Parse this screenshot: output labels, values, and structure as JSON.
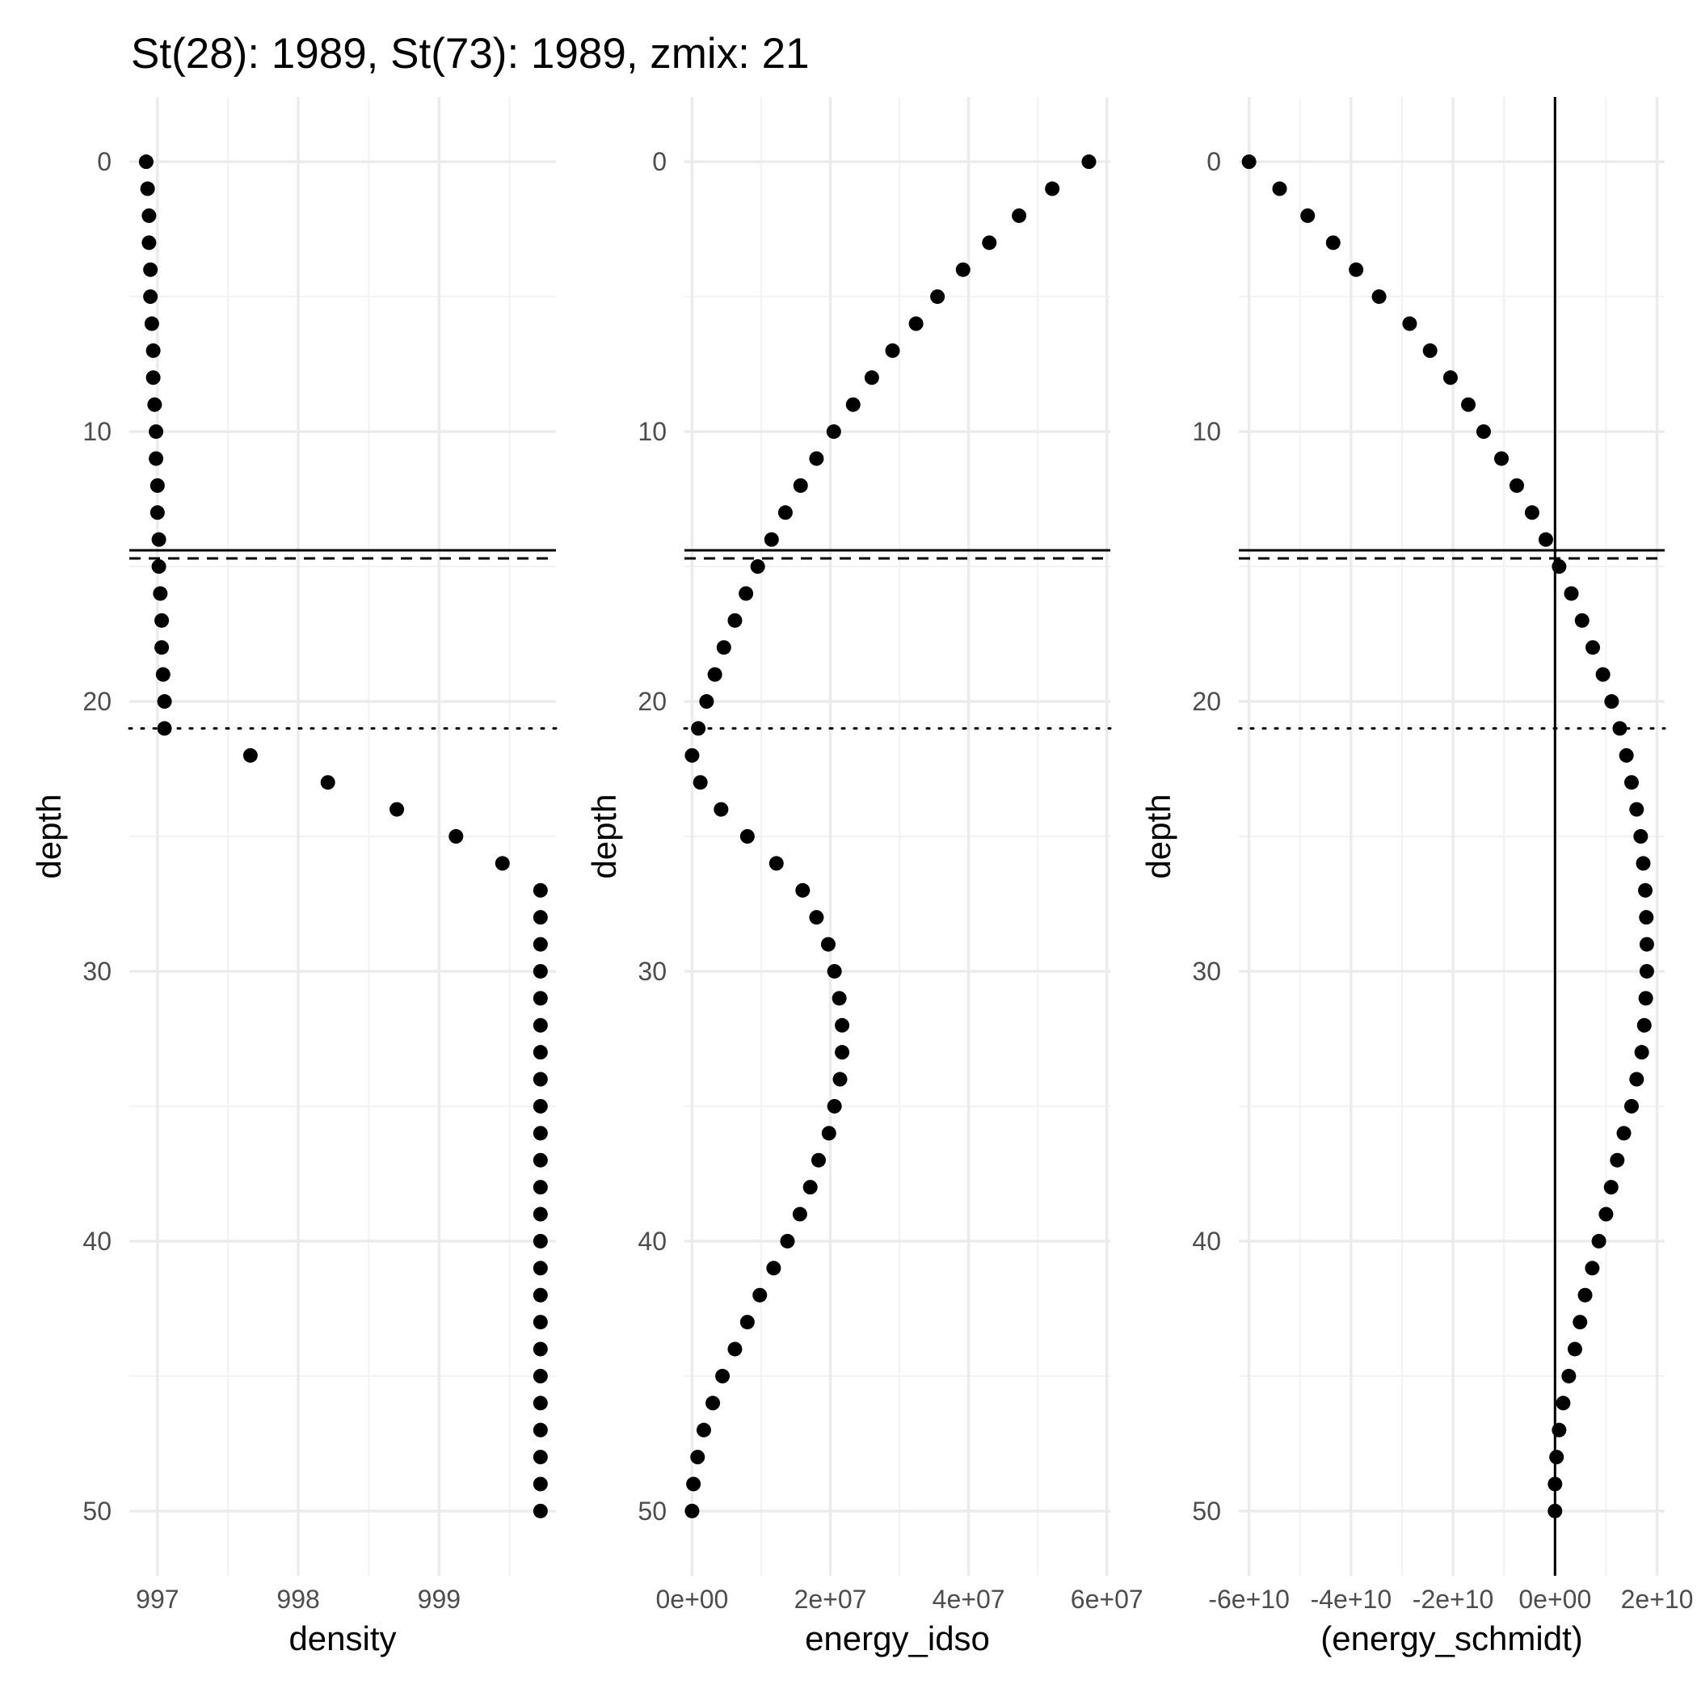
{
  "title": "St(28): 1989, St(73): 1989, zmix: 21",
  "colors": {
    "background": "#ffffff",
    "grid_major": "#ebebeb",
    "grid_minor": "#f2f2f2",
    "point": "#000000",
    "tick_text": "#4d4d4d",
    "line": "#000000"
  },
  "chart_data": [
    {
      "type": "scatter",
      "xlabel": "density",
      "ylabel": "depth",
      "y_reversed": true,
      "xlim": [
        996.8,
        999.83
      ],
      "ylim": [
        -2.4,
        52.4
      ],
      "x_major_ticks": [
        997,
        998,
        999
      ],
      "x_tick_labels": [
        "997",
        "998",
        "999"
      ],
      "y_major_ticks": [
        0,
        10,
        20,
        30,
        40,
        50
      ],
      "y_tick_labels": [
        "0",
        "10",
        "20",
        "30",
        "40",
        "50"
      ],
      "grid": true,
      "hlines": [
        {
          "y": 14.4,
          "style": "solid"
        },
        {
          "y": 14.7,
          "style": "dashed"
        },
        {
          "y": 21,
          "style": "dotted"
        }
      ],
      "vlines": [],
      "points": {
        "depth": [
          0,
          1,
          2,
          3,
          4,
          5,
          6,
          7,
          8,
          9,
          10,
          11,
          12,
          13,
          14,
          15,
          16,
          17,
          18,
          19,
          20,
          21,
          22,
          23,
          24,
          25,
          26,
          27,
          28,
          29,
          30,
          31,
          32,
          33,
          34,
          35,
          36,
          37,
          38,
          39,
          40,
          41,
          42,
          43,
          44,
          45,
          46,
          47,
          48,
          49,
          50
        ],
        "x": [
          996.92,
          996.93,
          996.94,
          996.94,
          996.95,
          996.95,
          996.96,
          996.97,
          996.97,
          996.98,
          996.99,
          996.99,
          997.0,
          997.0,
          997.01,
          997.01,
          997.02,
          997.03,
          997.03,
          997.04,
          997.05,
          997.05,
          997.66,
          998.21,
          998.7,
          999.12,
          999.45,
          999.72,
          999.72,
          999.72,
          999.72,
          999.72,
          999.72,
          999.72,
          999.72,
          999.72,
          999.72,
          999.72,
          999.72,
          999.72,
          999.72,
          999.72,
          999.72,
          999.72,
          999.72,
          999.72,
          999.72,
          999.72,
          999.72,
          999.72,
          999.72
        ]
      }
    },
    {
      "type": "scatter",
      "xlabel": "energy_idso",
      "ylabel": "depth",
      "y_reversed": true,
      "xlim": [
        -1100000.0,
        60500000.0
      ],
      "ylim": [
        -2.4,
        52.4
      ],
      "x_major_ticks": [
        0,
        20000000,
        40000000,
        60000000
      ],
      "x_tick_labels": [
        "0e+00",
        "2e+07",
        "4e+07",
        "6e+07"
      ],
      "y_major_ticks": [
        0,
        10,
        20,
        30,
        40,
        50
      ],
      "y_tick_labels": [
        "0",
        "10",
        "20",
        "30",
        "40",
        "50"
      ],
      "grid": true,
      "hlines": [
        {
          "y": 14.4,
          "style": "solid"
        },
        {
          "y": 14.7,
          "style": "dashed"
        },
        {
          "y": 21,
          "style": "dotted"
        }
      ],
      "vlines": [],
      "points": {
        "depth": [
          0,
          1,
          2,
          3,
          4,
          5,
          6,
          7,
          8,
          9,
          10,
          11,
          12,
          13,
          14,
          15,
          16,
          17,
          18,
          19,
          20,
          21,
          22,
          23,
          24,
          25,
          26,
          27,
          28,
          29,
          30,
          31,
          32,
          33,
          34,
          35,
          36,
          37,
          38,
          39,
          40,
          41,
          42,
          43,
          44,
          45,
          46,
          47,
          48,
          49,
          50
        ],
        "x": [
          57400000,
          52100000,
          47300000,
          43000000,
          39200000,
          35500000,
          32400000,
          29000000,
          26000000,
          23300000,
          20500000,
          18000000,
          15700000,
          13500000,
          11500000,
          9500000,
          7800000,
          6200000,
          4600000,
          3300000,
          2100000,
          900000,
          0,
          1200000,
          4200000,
          8000000,
          12200000,
          16000000,
          18000000,
          19700000,
          20600000,
          21300000,
          21700000,
          21700000,
          21400000,
          20600000,
          19800000,
          18300000,
          17100000,
          15600000,
          13800000,
          11800000,
          9800000,
          8000000,
          6200000,
          4400000,
          3000000,
          1700000,
          800000,
          200000,
          0
        ]
      }
    },
    {
      "type": "scatter",
      "xlabel": "(energy_schmidt)",
      "ylabel": "depth",
      "y_reversed": true,
      "xlim": [
        -62000000000.0,
        21500000000.0
      ],
      "ylim": [
        -2.4,
        52.4
      ],
      "x_major_ticks": [
        -60000000000,
        -40000000000,
        -20000000000,
        0,
        20000000000
      ],
      "x_tick_labels": [
        "-6e+10",
        "-4e+10",
        "-2e+10",
        "0e+00",
        "2e+10"
      ],
      "y_major_ticks": [
        0,
        10,
        20,
        30,
        40,
        50
      ],
      "y_tick_labels": [
        "0",
        "10",
        "20",
        "30",
        "40",
        "50"
      ],
      "grid": true,
      "hlines": [
        {
          "y": 14.4,
          "style": "solid"
        },
        {
          "y": 14.7,
          "style": "dashed"
        },
        {
          "y": 21,
          "style": "dotted"
        }
      ],
      "vlines": [
        {
          "x": 0,
          "style": "solid"
        }
      ],
      "points": {
        "depth": [
          0,
          1,
          2,
          3,
          4,
          5,
          6,
          7,
          8,
          9,
          10,
          11,
          12,
          13,
          14,
          15,
          16,
          17,
          18,
          19,
          20,
          21,
          22,
          23,
          24,
          25,
          26,
          27,
          28,
          29,
          30,
          31,
          32,
          33,
          34,
          35,
          36,
          37,
          38,
          39,
          40,
          41,
          42,
          43,
          44,
          45,
          46,
          47,
          48,
          49,
          50
        ],
        "x": [
          -60000000000.0,
          -54000000000.0,
          -48500000000.0,
          -43500000000.0,
          -39000000000.0,
          -34500000000.0,
          -28500000000.0,
          -24500000000.0,
          -20500000000.0,
          -17000000000.0,
          -14000000000.0,
          -10500000000.0,
          -7500000000.0,
          -4500000000.0,
          -1800000000.0,
          800000000.0,
          3200000000.0,
          5300000000.0,
          7400000000.0,
          9400000000.0,
          11100000000.0,
          12700000000.0,
          14000000000.0,
          15000000000.0,
          16000000000.0,
          16800000000.0,
          17300000000.0,
          17700000000.0,
          17900000000.0,
          18000000000.0,
          18000000000.0,
          17800000000.0,
          17500000000.0,
          17000000000.0,
          16000000000.0,
          15000000000.0,
          13500000000.0,
          12200000000.0,
          11000000000.0,
          10000000000.0,
          8600000000.0,
          7300000000.0,
          5900000000.0,
          4900000000.0,
          3900000000.0,
          2700000000.0,
          1600000000.0,
          800000000.0,
          300000000.0,
          0,
          0
        ]
      }
    }
  ]
}
